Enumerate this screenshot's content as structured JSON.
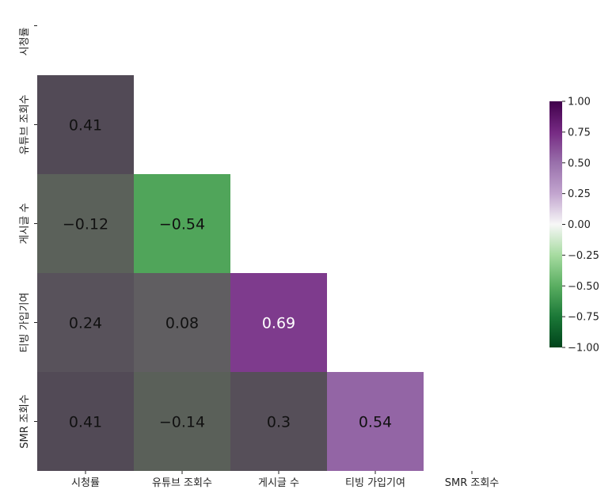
{
  "chart_data": {
    "type": "heatmap",
    "variant": "lower-triangle correlation matrix",
    "title": "",
    "xlabel": "",
    "ylabel": "",
    "x_labels": [
      "시청률",
      "유튜브 조회수",
      "게시글 수",
      "티빙 가입기여",
      "SMR 조회수"
    ],
    "y_labels": [
      "시청률",
      "유튜브 조회수",
      "게시글 수",
      "티빙 가입기여",
      "SMR 조회수"
    ],
    "matrix": [
      [
        null,
        null,
        null,
        null,
        null
      ],
      [
        0.41,
        null,
        null,
        null,
        null
      ],
      [
        -0.12,
        -0.54,
        null,
        null,
        null
      ],
      [
        0.24,
        0.08,
        0.69,
        null,
        null
      ],
      [
        0.41,
        -0.14,
        0.3,
        0.54,
        null
      ]
    ],
    "annotations": [
      [
        null,
        null,
        null,
        null,
        null
      ],
      [
        "0.41",
        null,
        null,
        null,
        null
      ],
      [
        "−0.12",
        "−0.54",
        null,
        null,
        null
      ],
      [
        "0.24",
        "0.08",
        "0.69",
        null,
        null
      ],
      [
        "0.41",
        "−0.14",
        "0.3",
        "0.54",
        null
      ]
    ],
    "colorbar": {
      "range": [
        -1.0,
        1.0
      ],
      "ticks": [
        "1.00",
        "0.75",
        "0.50",
        "0.25",
        "0.00",
        "−0.25",
        "−0.50",
        "−0.75",
        "−1.00"
      ],
      "tick_values": [
        1.0,
        0.75,
        0.5,
        0.25,
        0.0,
        -0.25,
        -0.5,
        -0.75,
        -1.0
      ],
      "colormap": "PRGn (diverging green–purple)",
      "position": "right"
    },
    "colors": {
      "purple_end": "#40004b",
      "green_end": "#00441b",
      "overlay_dark": "#3a3a3a"
    },
    "grid": false
  }
}
